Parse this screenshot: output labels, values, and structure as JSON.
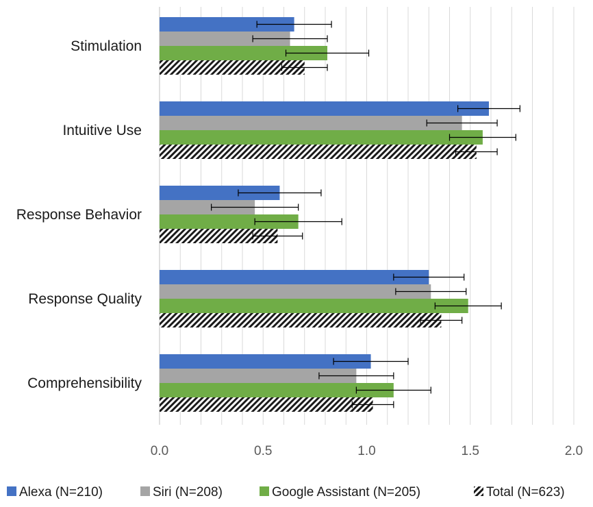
{
  "chart_data": {
    "type": "bar",
    "orientation": "horizontal",
    "categories": [
      "Stimulation",
      "Intuitive Use",
      "Response Behavior",
      "Response Quality",
      "Comprehensibility"
    ],
    "series": [
      {
        "name": "Alexa (N=210)",
        "color": "#4472c4",
        "pattern": "solid",
        "values": [
          0.65,
          1.59,
          0.58,
          1.3,
          1.02
        ],
        "errors": [
          0.18,
          0.15,
          0.2,
          0.17,
          0.18
        ]
      },
      {
        "name": "Siri (N=208)",
        "color": "#a5a5a5",
        "pattern": "solid",
        "values": [
          0.63,
          1.46,
          0.46,
          1.31,
          0.95
        ],
        "errors": [
          0.18,
          0.17,
          0.21,
          0.17,
          0.18
        ]
      },
      {
        "name": "Google Assistant (N=205)",
        "color": "#70ad47",
        "pattern": "solid",
        "values": [
          0.81,
          1.56,
          0.67,
          1.49,
          1.13
        ],
        "errors": [
          0.2,
          0.16,
          0.21,
          0.16,
          0.18
        ]
      },
      {
        "name": "Total (N=623)",
        "color": "#1a1a1a",
        "pattern": "hatch",
        "values": [
          0.7,
          1.53,
          0.57,
          1.36,
          1.03
        ],
        "errors": [
          0.11,
          0.1,
          0.12,
          0.1,
          0.1
        ]
      }
    ],
    "xlim": [
      0,
      2
    ],
    "xticks": [
      "0.0",
      "0.5",
      "1.0",
      "1.5",
      "2.0"
    ],
    "minor_gridlines": true,
    "legend_position": "bottom"
  }
}
